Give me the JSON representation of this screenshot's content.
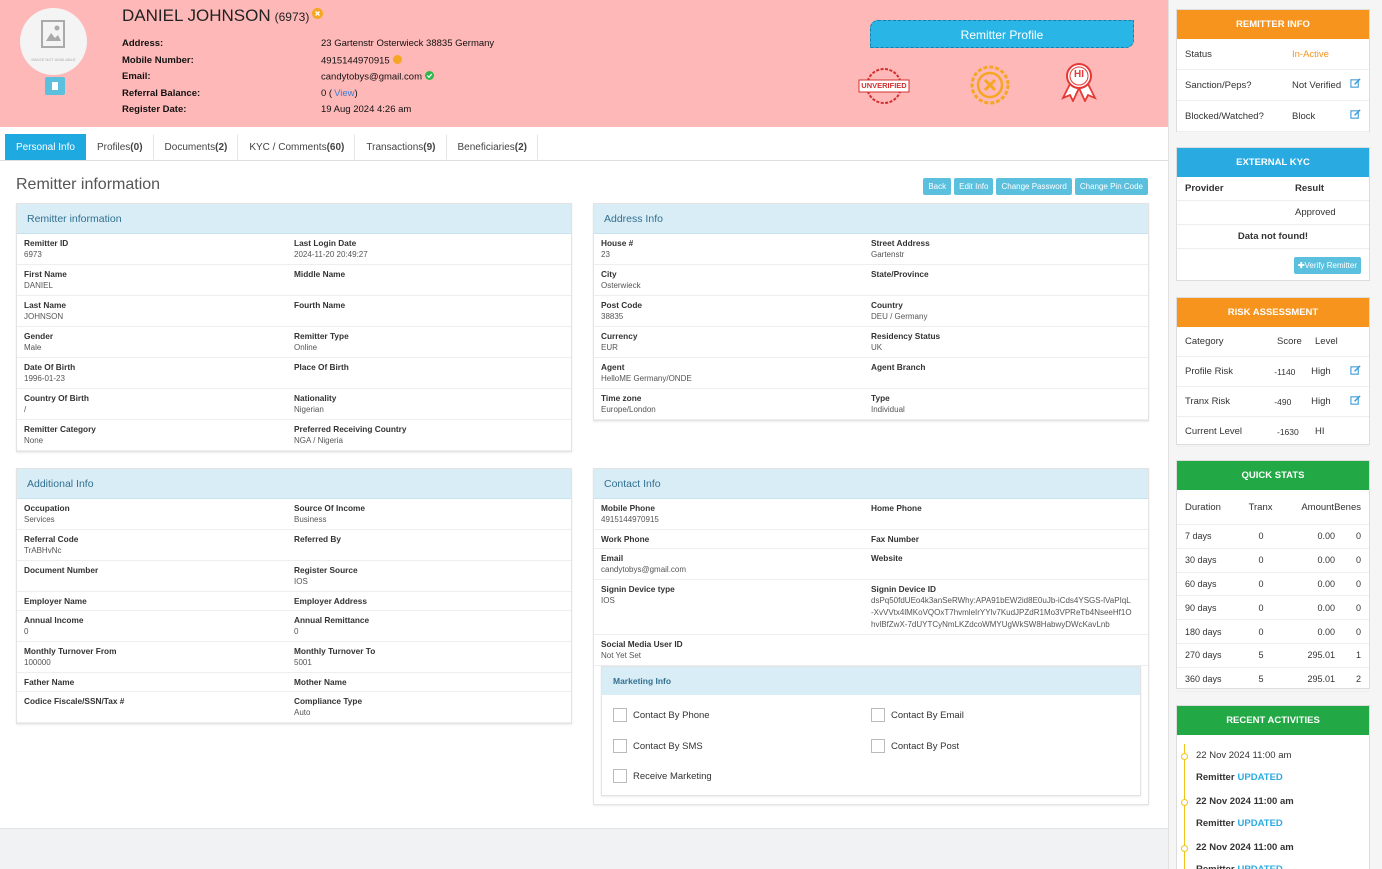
{
  "header": {
    "name": "DANIEL JOHNSON",
    "id": "(6973)",
    "image_text": "IMAGE NOT AVAILABLE",
    "fields": [
      {
        "label": "Address:",
        "value": "23 Gartenstr Osterwieck 38835 Germany"
      },
      {
        "label": "Mobile Number:",
        "value": "4915144970915"
      },
      {
        "label": "Email:",
        "value": "candytobys@gmail.com"
      },
      {
        "label": "Referral Balance:",
        "value": "0 (",
        "link": "View",
        "suffix": ")"
      },
      {
        "label": "Register Date:",
        "value": "19 Aug 2024 4:26 am"
      }
    ],
    "profile_button": "Remitter Profile",
    "badges": {
      "unverified": "UNVERIFIED",
      "hi": "HI"
    }
  },
  "tabs": [
    {
      "label": "Personal Info"
    },
    {
      "label": "Profiles",
      "count": "(0)"
    },
    {
      "label": "Documents",
      "count": "(2)"
    },
    {
      "label": "KYC / Comments",
      "count": "(60)"
    },
    {
      "label": "Transactions",
      "count": "(9)"
    },
    {
      "label": "Beneficiaries",
      "count": "(2)"
    }
  ],
  "section": {
    "title": "Remitter information",
    "actions": [
      "Back",
      "Edit Info",
      "Change Password",
      "Change Pin Code"
    ]
  },
  "panels": [
    {
      "title": "Remitter information",
      "rows": [
        [
          {
            "label": "Remitter ID",
            "value": "6973"
          },
          {
            "label": "Last Login Date",
            "value": "2024-11-20 20:49:27"
          }
        ],
        [
          {
            "label": "First Name",
            "value": "DANIEL"
          },
          {
            "label": "Middle Name"
          }
        ],
        [
          {
            "label": "Last Name",
            "value": "JOHNSON"
          },
          {
            "label": "Fourth Name"
          }
        ],
        [
          {
            "label": "Gender",
            "value": "Male"
          },
          {
            "label": "Remitter Type",
            "value": "Online"
          }
        ],
        [
          {
            "label": "Date Of Birth",
            "value": "1996-01-23"
          },
          {
            "label": "Place Of Birth"
          }
        ],
        [
          {
            "label": "Country Of Birth",
            "value": "/"
          },
          {
            "label": "Nationality",
            "value": "Nigerian"
          }
        ],
        [
          {
            "label": "Remitter Category",
            "value": "None"
          },
          {
            "label": "Preferred Receiving Country",
            "value": "NGA / Nigeria"
          }
        ]
      ]
    },
    {
      "title": "Address Info",
      "rows": [
        [
          {
            "label": "House #",
            "value": "23"
          },
          {
            "label": "Street Address",
            "value": "Gartenstr"
          }
        ],
        [
          {
            "label": "City",
            "value": "Osterwieck"
          },
          {
            "label": "State/Province"
          }
        ],
        [
          {
            "label": "Post Code",
            "value": "38835"
          },
          {
            "label": "Country",
            "value": "DEU / Germany"
          }
        ],
        [
          {
            "label": "Currency",
            "value": "EUR"
          },
          {
            "label": "Residency Status",
            "value": "UK"
          }
        ],
        [
          {
            "label": "Agent",
            "value": "HelloME Germany/ONDE"
          },
          {
            "label": "Agent Branch"
          }
        ],
        [
          {
            "label": "Time zone",
            "value": "Europe/London"
          },
          {
            "label": "Type",
            "value": "Individual"
          }
        ]
      ]
    },
    {
      "title": "Additional Info",
      "rows": [
        [
          {
            "label": "Occupation",
            "value": "Services"
          },
          {
            "label": "Source Of Income",
            "value": "Business"
          }
        ],
        [
          {
            "label": "Referral Code",
            "value": "TrABHvNc"
          },
          {
            "label": "Referred By"
          }
        ],
        [
          {
            "label": "Document Number"
          },
          {
            "label": "Register Source",
            "value": "IOS"
          }
        ],
        [
          {
            "label": "Employer Name"
          },
          {
            "label": "Employer Address"
          }
        ],
        [
          {
            "label": "Annual Income",
            "value": "0"
          },
          {
            "label": "Annual Remittance",
            "value": "0"
          }
        ],
        [
          {
            "label": "Monthly Turnover From",
            "value": "100000"
          },
          {
            "label": "Monthly Turnover To",
            "value": "5001"
          }
        ],
        [
          {
            "label": "Father Name"
          },
          {
            "label": "Mother Name"
          }
        ],
        [
          {
            "label": "Codice Fiscale/SSN/Tax #"
          },
          {
            "label": "Compliance Type",
            "value": "Auto"
          }
        ]
      ]
    },
    {
      "title": "Contact Info",
      "rows": [
        [
          {
            "label": "Mobile Phone",
            "value": "4915144970915"
          },
          {
            "label": "Home Phone"
          }
        ],
        [
          {
            "label": "Work Phone"
          },
          {
            "label": "Fax Number"
          }
        ],
        [
          {
            "label": "Email",
            "value": "candytobys@gmail.com"
          },
          {
            "label": "Website"
          }
        ],
        [
          {
            "label": "Signin Device type",
            "value": "IOS"
          },
          {
            "label": "Signin Device ID",
            "value": "dsPq50fdUEo4k3anSeRWhy:APA91bEW2id8E0uJb-iCds4YSGS-lVaPIqL-XvVVtx4lMKoVQOxT7hvmleIrYYlv7KudJPZdR1Mo3VPReTb4NseeHf1OhvlBfZwX-7dUYTCyNmLKZdcoWMYUgWkSW8HabwyDWcKavLnb"
          }
        ],
        [
          {
            "label": "Social Media User ID",
            "value": "Not Yet Set"
          }
        ]
      ],
      "marketing": {
        "title": "Marketing Info",
        "options": [
          "Contact By Phone",
          "Contact By Email",
          "Contact By SMS",
          "Contact By Post",
          "Receive Marketing"
        ]
      }
    }
  ],
  "sidebar": {
    "remitter_info": {
      "title": "REMITTER INFO",
      "rows": [
        {
          "label": "Status",
          "value": "In-Active"
        },
        {
          "label": "Sanction/Peps?",
          "value": "Not Verified"
        },
        {
          "label": "Blocked/Watched?",
          "value": "Block"
        }
      ]
    },
    "external_kyc": {
      "title": "EXTERNAL KYC",
      "headers": [
        "Provider",
        "Result"
      ],
      "result": "Approved",
      "message": "Data not found!",
      "button": "Verify Remitter"
    },
    "risk": {
      "title": "RISK ASSESSMENT",
      "headers": [
        "Category",
        "Score",
        "Level"
      ],
      "rows": [
        [
          "Profile Risk",
          "-1140",
          "High"
        ],
        [
          "Tranx Risk",
          "-490",
          "High"
        ],
        [
          "Current Level",
          "-1630",
          "HI"
        ]
      ]
    },
    "quick_stats": {
      "title": "QUICK STATS",
      "headers": [
        "Duration",
        "Tranx",
        "Amount",
        "Benes"
      ],
      "rows": [
        [
          "7 days",
          "0",
          "0.00",
          "0"
        ],
        [
          "30 days",
          "0",
          "0.00",
          "0"
        ],
        [
          "60 days",
          "0",
          "0.00",
          "0"
        ],
        [
          "90 days",
          "0",
          "0.00",
          "0"
        ],
        [
          "180 days",
          "0",
          "0.00",
          "0"
        ],
        [
          "270 days",
          "5",
          "295.01",
          "1"
        ],
        [
          "360 days",
          "5",
          "295.01",
          "2"
        ]
      ]
    },
    "recent": {
      "title": "RECENT ACTIVITIES",
      "items": [
        {
          "date": "22 Nov 2024 11:00 am",
          "who": "Remitter",
          "action": "UPDATED"
        },
        {
          "date": "22 Nov 2024 11:00 am",
          "who": "Remitter",
          "action": "UPDATED"
        },
        {
          "date": "22 Nov 2024 11:00 am",
          "who": "Remitter",
          "action": "UPDATED"
        }
      ]
    }
  }
}
